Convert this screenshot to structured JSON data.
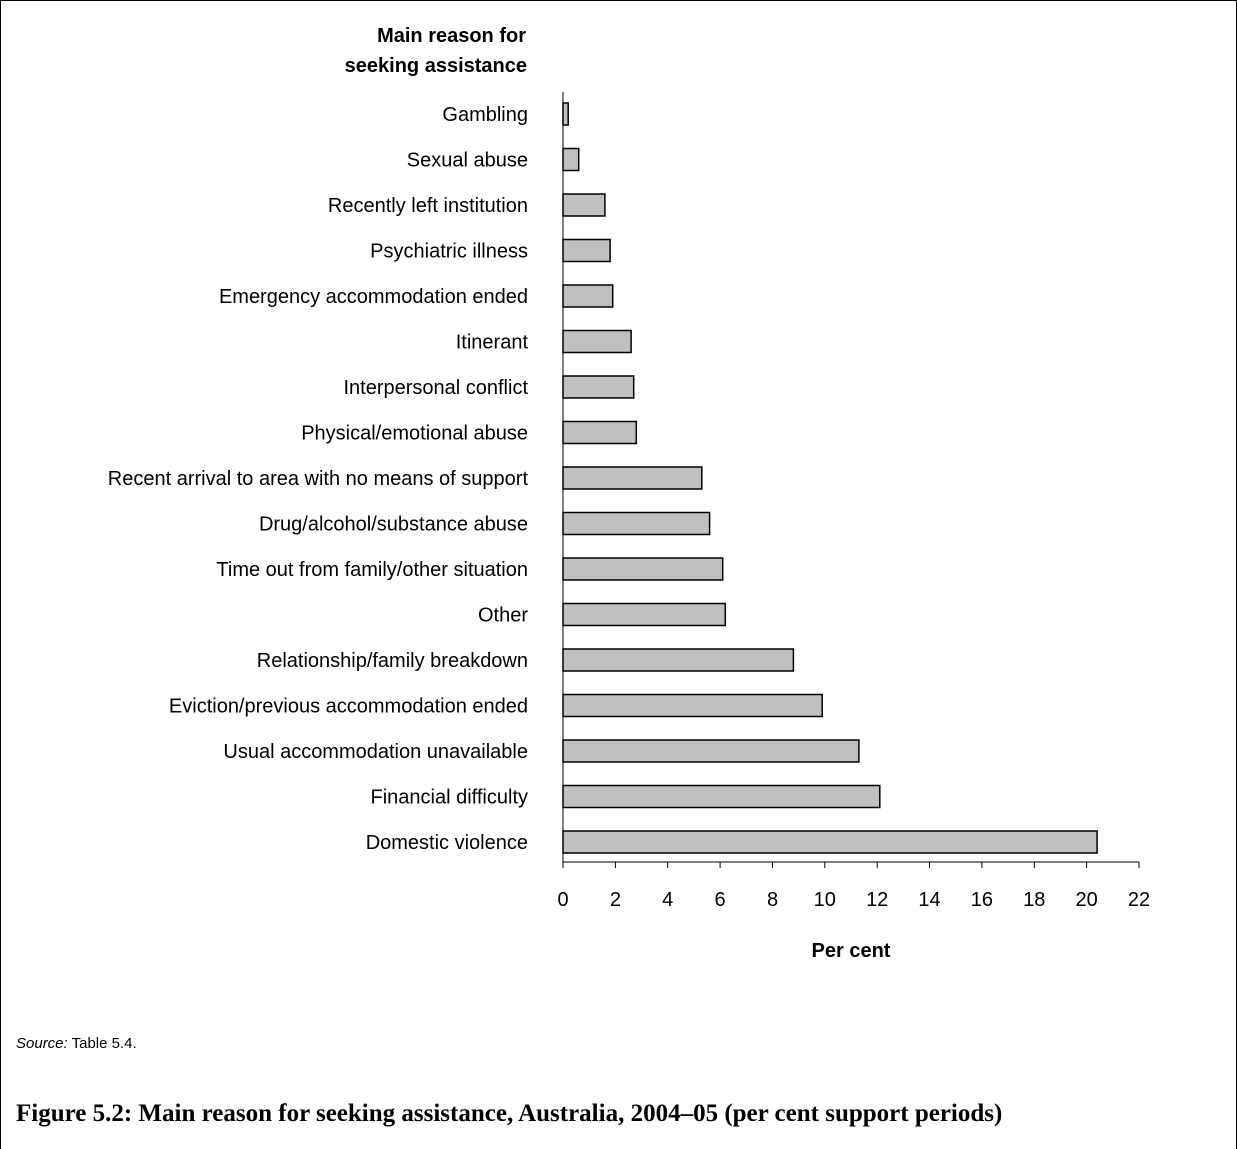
{
  "chart_data": {
    "type": "bar",
    "orientation": "horizontal",
    "yaxis_title_line1": "Main reason for",
    "yaxis_title_line2": "seeking assistance",
    "xlabel": "Per cent",
    "xlim": [
      0,
      22
    ],
    "xticks": [
      0,
      2,
      4,
      6,
      8,
      10,
      12,
      14,
      16,
      18,
      20,
      22
    ],
    "categories": [
      "Gambling",
      "Sexual abuse",
      "Recently left institution",
      "Psychiatric illness",
      "Emergency accommodation ended",
      "Itinerant",
      "Interpersonal conflict",
      "Physical/emotional abuse",
      "Recent arrival to area with no means of support",
      "Drug/alcohol/substance abuse",
      "Time out from family/other situation",
      "Other",
      "Relationship/family breakdown",
      "Eviction/previous accommodation ended",
      "Usual accommodation unavailable",
      "Financial difficulty",
      "Domestic violence"
    ],
    "values": [
      0.2,
      0.6,
      1.6,
      1.8,
      1.9,
      2.6,
      2.7,
      2.8,
      5.3,
      5.6,
      6.1,
      6.2,
      8.8,
      9.9,
      11.3,
      12.1,
      20.4
    ],
    "bar_color": "#c0c0c0",
    "grid": false,
    "legend": "none"
  },
  "source": {
    "label": "Source:",
    "text": " Table 5.4."
  },
  "caption": "Figure 5.2: Main reason for seeking assistance, Australia, 2004–05 (per cent support periods)"
}
